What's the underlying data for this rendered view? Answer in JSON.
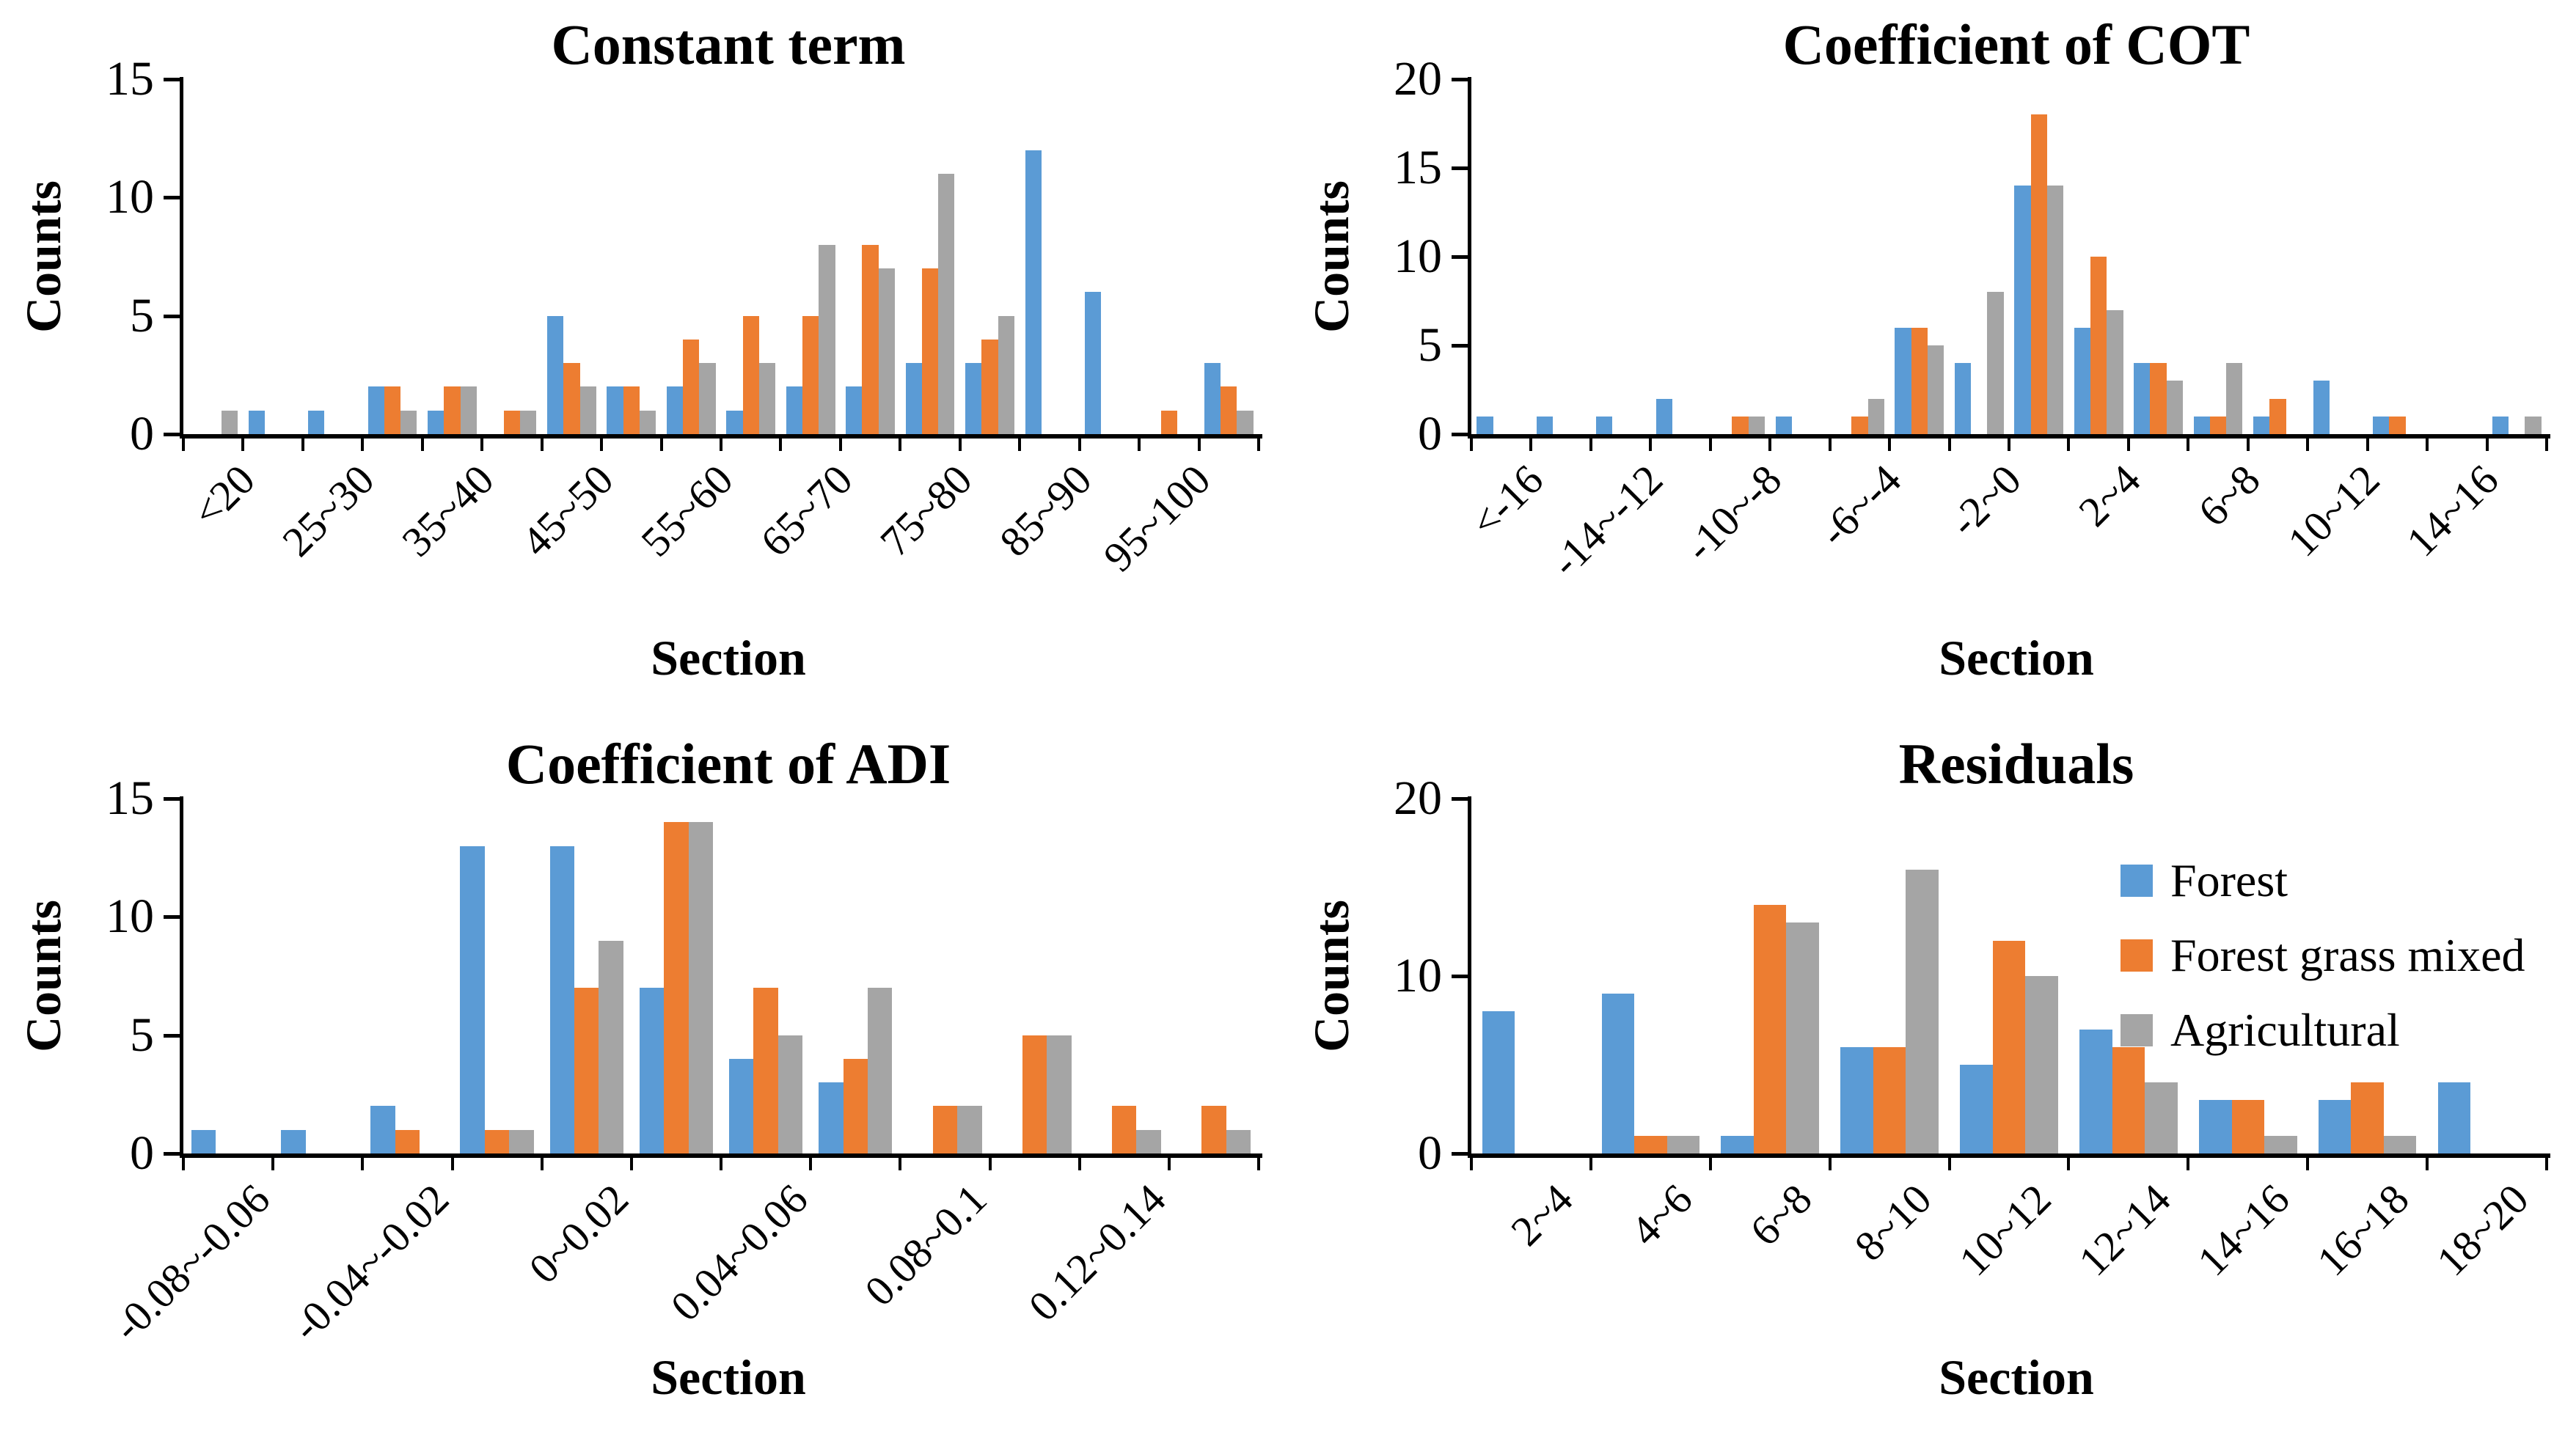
{
  "figure": {
    "background": "#ffffff",
    "text_color": "#000000"
  },
  "palette": {
    "forest": "#5B9BD5",
    "forest_grass_mixed": "#ED7D31",
    "agricultural": "#A5A5A5",
    "axis": "#000000"
  },
  "chart_data": [
    {
      "type": "bar",
      "title": "Constant term",
      "xlabel": "Section",
      "ylabel": "Counts",
      "ylim": [
        0,
        15
      ],
      "yticks": [
        0,
        5,
        10,
        15
      ],
      "grid": false,
      "legend_position": "none",
      "categories": [
        "<20",
        "",
        "25~30",
        "",
        "35~40",
        "",
        "45~50",
        "",
        "55~60",
        "",
        "65~70",
        "",
        "75~80",
        "",
        "85~90",
        "",
        "95~100",
        ""
      ],
      "series": [
        {
          "name": "Forest",
          "color": "#5B9BD5",
          "values": [
            0,
            1,
            1,
            2,
            1,
            0,
            5,
            2,
            2,
            1,
            2,
            2,
            3,
            3,
            12,
            6,
            0,
            3
          ]
        },
        {
          "name": "Forest grass mixed",
          "color": "#ED7D31",
          "values": [
            0,
            0,
            0,
            2,
            2,
            1,
            3,
            2,
            4,
            5,
            5,
            8,
            7,
            4,
            0,
            0,
            1,
            2
          ]
        },
        {
          "name": "Agricultural",
          "color": "#A5A5A5",
          "values": [
            1,
            0,
            0,
            1,
            2,
            1,
            2,
            1,
            3,
            3,
            8,
            7,
            11,
            5,
            0,
            0,
            0,
            1
          ]
        }
      ]
    },
    {
      "type": "bar",
      "title": "Coefficient of COT",
      "xlabel": "Section",
      "ylabel": "Counts",
      "ylim": [
        0,
        20
      ],
      "yticks": [
        0,
        5,
        10,
        15,
        20
      ],
      "grid": false,
      "legend_position": "none",
      "categories": [
        "<-16",
        "",
        "-14~-12",
        "",
        "-10~-8",
        "",
        "-6~-4",
        "",
        "-2~0",
        "",
        "2~4",
        "",
        "6~8",
        "",
        "10~12",
        "",
        "14~16",
        ""
      ],
      "series": [
        {
          "name": "Forest",
          "color": "#5B9BD5",
          "values": [
            1,
            1,
            1,
            2,
            0,
            1,
            0,
            6,
            4,
            14,
            6,
            4,
            1,
            1,
            3,
            1,
            0,
            1
          ]
        },
        {
          "name": "Forest grass mixed",
          "color": "#ED7D31",
          "values": [
            0,
            0,
            0,
            0,
            1,
            0,
            1,
            6,
            0,
            18,
            10,
            4,
            1,
            2,
            0,
            1,
            0,
            0
          ]
        },
        {
          "name": "Agricultural",
          "color": "#A5A5A5",
          "values": [
            0,
            0,
            0,
            0,
            1,
            0,
            2,
            5,
            8,
            14,
            7,
            3,
            4,
            0,
            0,
            0,
            0,
            1
          ]
        }
      ]
    },
    {
      "type": "bar",
      "title": "Coefficient of ADI",
      "xlabel": "Section",
      "ylabel": "Counts",
      "ylim": [
        0,
        15
      ],
      "yticks": [
        0,
        5,
        10,
        15
      ],
      "grid": false,
      "legend_position": "none",
      "categories": [
        "-0.08~-0.06",
        "",
        "-0.04~-0.02",
        "",
        "0~0.02",
        "",
        "0.04~0.06",
        "",
        "0.08~0.1",
        "",
        "0.12~0.14",
        ""
      ],
      "series": [
        {
          "name": "Forest",
          "color": "#5B9BD5",
          "values": [
            1,
            1,
            2,
            13,
            13,
            7,
            4,
            3,
            0,
            0,
            0,
            0
          ]
        },
        {
          "name": "Forest grass mixed",
          "color": "#ED7D31",
          "values": [
            0,
            0,
            1,
            1,
            7,
            14,
            7,
            4,
            2,
            5,
            2,
            2
          ]
        },
        {
          "name": "Agricultural",
          "color": "#A5A5A5",
          "values": [
            0,
            0,
            0,
            1,
            9,
            14,
            5,
            7,
            2,
            5,
            1,
            1
          ]
        }
      ]
    },
    {
      "type": "bar",
      "title": "Residuals",
      "xlabel": "Section",
      "ylabel": "Counts",
      "ylim": [
        0,
        20
      ],
      "yticks": [
        0,
        10,
        20
      ],
      "grid": false,
      "legend_position": "upper-right-inside",
      "categories": [
        "2~4",
        "4~6",
        "6~8",
        "8~10",
        "10~12",
        "12~14",
        "14~16",
        "16~18",
        "18~20"
      ],
      "series": [
        {
          "name": "Forest",
          "color": "#5B9BD5",
          "values": [
            8,
            9,
            1,
            6,
            5,
            7,
            3,
            3,
            4
          ]
        },
        {
          "name": "Forest grass mixed",
          "color": "#ED7D31",
          "values": [
            0,
            1,
            14,
            6,
            12,
            6,
            3,
            4,
            0
          ]
        },
        {
          "name": "Agricultural",
          "color": "#A5A5A5",
          "values": [
            0,
            1,
            13,
            16,
            10,
            4,
            1,
            1,
            0
          ]
        }
      ]
    }
  ]
}
